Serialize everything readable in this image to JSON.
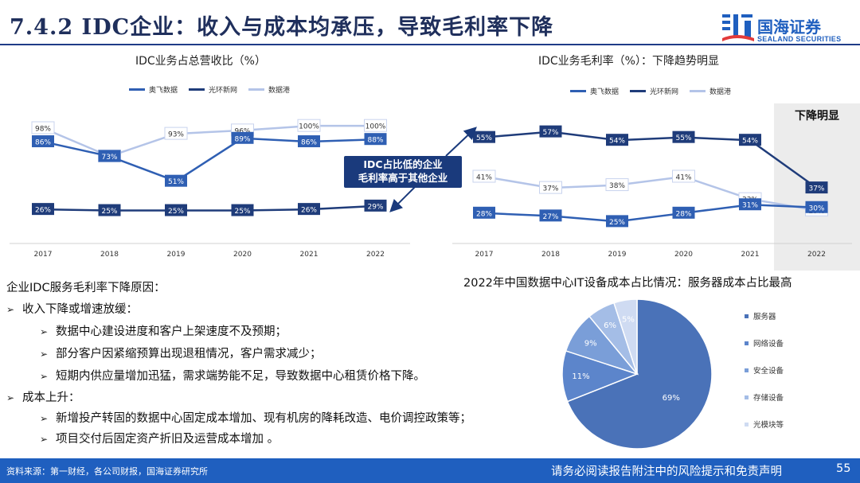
{
  "header": {
    "title": "7.4.2 IDC企业：收入与成本均承压，导致毛利率下降",
    "logo_cn": "国海证券",
    "logo_en": "SEALAND SECURITIES"
  },
  "colors": {
    "aofei": "#2f5fb3",
    "guanghuan": "#1f3c7a",
    "shujugang": "#b4c4e8",
    "accent": "#1f5fbf",
    "callout": "#1a3a7c"
  },
  "callout": {
    "line1": "IDC占比低的企业",
    "line2": "毛利率高于其他企业"
  },
  "highlight_label": "下降明显",
  "chart_data": [
    {
      "type": "line",
      "title": "IDC业务占总营收比（%）",
      "x": [
        "2017",
        "2018",
        "2019",
        "2020",
        "2021",
        "2022"
      ],
      "series": [
        {
          "name": "奥飞数据",
          "values": [
            86,
            73,
            51,
            89,
            86,
            88
          ],
          "labels": [
            "86%",
            "73%",
            "51%",
            "89%",
            "86%",
            "88%"
          ]
        },
        {
          "name": "光环新网",
          "values": [
            26,
            25,
            25,
            25,
            26,
            29
          ],
          "labels": [
            "26%",
            "25%",
            "25%",
            "25%",
            "26%",
            "29%"
          ]
        },
        {
          "name": "数据港",
          "values": [
            98,
            73,
            93,
            96,
            100,
            100
          ],
          "labels": [
            "98%",
            "73%",
            "93%",
            "96%",
            "100%",
            "100%"
          ]
        }
      ],
      "ylim": [
        0,
        110
      ]
    },
    {
      "type": "line",
      "title": "IDC业务毛利率（%）：下降趋势明显",
      "x": [
        "2017",
        "2018",
        "2019",
        "2020",
        "2021",
        "2022"
      ],
      "series": [
        {
          "name": "奥飞数据",
          "values": [
            28,
            27,
            25,
            28,
            31,
            30
          ],
          "labels": [
            "28%",
            "27%",
            "25%",
            "28%",
            "31%",
            "30%"
          ]
        },
        {
          "name": "光环新网",
          "values": [
            55,
            57,
            54,
            55,
            54,
            37
          ],
          "labels": [
            "55%",
            "57%",
            "54%",
            "55%",
            "54%",
            "37%"
          ]
        },
        {
          "name": "数据港",
          "values": [
            41,
            37,
            38,
            41,
            33,
            29
          ],
          "labels": [
            "41%",
            "37%",
            "38%",
            "41%",
            "33%",
            "29%"
          ]
        }
      ],
      "ylim": [
        20,
        62
      ]
    },
    {
      "type": "pie",
      "title": "2022年中国数据中心IT设备成本占比情况：服务器成本占比最高",
      "slices": [
        {
          "name": "服务器",
          "value": 69,
          "label": "69%",
          "color": "#4a72b8"
        },
        {
          "name": "网络设备",
          "value": 11,
          "label": "11%",
          "color": "#5c85cb"
        },
        {
          "name": "安全设备",
          "value": 9,
          "label": "9%",
          "color": "#7a9ed8"
        },
        {
          "name": "存储设备",
          "value": 6,
          "label": "6%",
          "color": "#a4bde6"
        },
        {
          "name": "光模块等",
          "value": 5,
          "label": "5%",
          "color": "#cfdbf2"
        }
      ]
    }
  ],
  "reasons": {
    "heading": "企业IDC服务毛利率下降原因：",
    "items": [
      {
        "level": 1,
        "text": "收入下降或增速放缓："
      },
      {
        "level": 2,
        "text": "数据中心建设进度和客户上架速度不及预期；"
      },
      {
        "level": 2,
        "text": "部分客户因紧缩预算出现退租情况，客户需求减少；"
      },
      {
        "level": 2,
        "text": "短期内供应量增加迅猛，需求端势能不足，导致数据中心租赁价格下降。"
      },
      {
        "level": 1,
        "text": "成本上升："
      },
      {
        "level": 2,
        "text": "新增投产转固的数据中心固定成本增加、现有机房的降耗改造、电价调控政策等；"
      },
      {
        "level": 2,
        "text": "项目交付后固定资产折旧及运营成本增加 。"
      }
    ]
  },
  "footer": {
    "source": "资料来源：第一财经，各公司财报，国海证券研究所",
    "notice": "请务必阅读报告附注中的风险提示和免责声明",
    "page": "55"
  }
}
